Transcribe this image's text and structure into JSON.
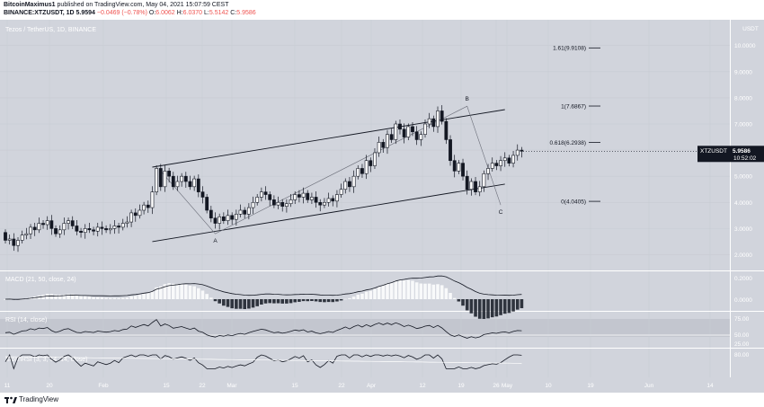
{
  "header": {
    "author": "BitcoinMaximus1",
    "published": "published on TradingView.com, May 04, 2021 15:07:59 CEST",
    "symbol": "BINANCE:XTZUSDT, 1D",
    "last": "5.9594",
    "change": "−0.0469 (−0.78%)",
    "o_label": "O:",
    "o": "6.0062",
    "h_label": "H:",
    "h": "6.0370",
    "l_label": "L:",
    "l": "5.5142",
    "c_label": "C:",
    "c": "5.9586"
  },
  "main": {
    "title": "Tezos / TetherUS, 1D, BINANCE",
    "currency": "USDT",
    "price_tag": {
      "symbol": "XTZUSDT",
      "price": "5.9586",
      "countdown": "10:52:02"
    },
    "fib_levels": [
      {
        "label": "1.61(9.9108)",
        "value": 9.9108
      },
      {
        "label": "1(7.6867)",
        "value": 7.6867
      },
      {
        "label": "0.618(6.2938)",
        "value": 6.2938
      },
      {
        "label": "0(4.0405)",
        "value": 4.0405
      }
    ],
    "wave_labels": {
      "a": "A",
      "b": "B",
      "c": "C"
    }
  },
  "macd": {
    "label": "MACD (21, 50, close, 24)",
    "ticks": [
      "0.0000",
      "0.2000"
    ]
  },
  "rsi": {
    "label": "RSI (14, close)",
    "ticks": [
      "75.00",
      "50.00",
      "25.00"
    ]
  },
  "stoch": {
    "label": "StochRSI (3, 3, 14, 14, close)",
    "ticks": [
      "80.00"
    ]
  },
  "footer": {
    "brand": "TradingView"
  },
  "chart_data": {
    "type": "candlestick",
    "title": "Tezos / TetherUS, 1D, BINANCE",
    "ylim": [
      1.5,
      10.3
    ],
    "y_ticks": [
      "10.0000",
      "9.0000",
      "8.0000",
      "7.0000",
      "6.0000",
      "5.0000",
      "4.0000",
      "3.0000",
      "2.0000"
    ],
    "x_ticks": [
      "11",
      "20",
      "Feb",
      "15",
      "22",
      "Mar",
      "15",
      "22",
      "Apr",
      "12",
      "19",
      "26",
      "May",
      "10",
      "19",
      "Jun",
      "14"
    ],
    "note_points": [
      {
        "label": "A",
        "day": 50,
        "price": 2.8
      },
      {
        "label": "B",
        "day": 110,
        "price": 7.68
      },
      {
        "label": "C",
        "day": 118,
        "price": 3.9
      }
    ],
    "candles": [
      [
        2.85,
        2.55
      ],
      [
        2.55,
        2.6
      ],
      [
        2.6,
        2.35
      ],
      [
        2.35,
        2.55
      ],
      [
        2.55,
        2.75
      ],
      [
        2.75,
        2.8
      ],
      [
        2.8,
        3.05
      ],
      [
        3.05,
        2.95
      ],
      [
        2.95,
        3.2
      ],
      [
        3.2,
        3.15
      ],
      [
        3.15,
        3.3
      ],
      [
        3.3,
        3.0
      ],
      [
        3.0,
        2.8
      ],
      [
        2.8,
        2.95
      ],
      [
        2.95,
        3.2
      ],
      [
        3.2,
        3.3
      ],
      [
        3.3,
        3.1
      ],
      [
        3.1,
        2.9
      ],
      [
        2.9,
        2.85
      ],
      [
        2.85,
        3.0
      ],
      [
        3.0,
        2.95
      ],
      [
        2.95,
        2.9
      ],
      [
        2.9,
        3.05
      ],
      [
        3.05,
        3.0
      ],
      [
        3.0,
        2.95
      ],
      [
        2.95,
        3.0
      ],
      [
        3.0,
        3.1
      ],
      [
        3.1,
        3.05
      ],
      [
        3.05,
        3.2
      ],
      [
        3.2,
        3.25
      ],
      [
        3.25,
        3.6
      ],
      [
        3.6,
        3.5
      ],
      [
        3.5,
        3.7
      ],
      [
        3.7,
        3.9
      ],
      [
        3.9,
        3.8
      ],
      [
        3.8,
        4.4
      ],
      [
        4.4,
        5.3
      ],
      [
        5.3,
        4.6
      ],
      [
        4.6,
        5.2
      ],
      [
        5.2,
        5.0
      ],
      [
        5.0,
        4.6
      ],
      [
        4.6,
        4.8
      ],
      [
        4.8,
        5.0
      ],
      [
        5.0,
        4.8
      ],
      [
        4.8,
        4.6
      ],
      [
        4.6,
        4.9
      ],
      [
        4.9,
        4.4
      ],
      [
        4.4,
        4.2
      ],
      [
        4.2,
        3.7
      ],
      [
        3.7,
        3.4
      ],
      [
        3.4,
        3.2
      ],
      [
        3.2,
        3.45
      ],
      [
        3.45,
        3.3
      ],
      [
        3.3,
        3.5
      ],
      [
        3.5,
        3.35
      ],
      [
        3.35,
        3.55
      ],
      [
        3.55,
        3.7
      ],
      [
        3.7,
        3.55
      ],
      [
        3.55,
        3.8
      ],
      [
        3.8,
        4.0
      ],
      [
        4.0,
        4.2
      ],
      [
        4.2,
        4.4
      ],
      [
        4.4,
        4.3
      ],
      [
        4.3,
        4.1
      ],
      [
        4.1,
        3.9
      ],
      [
        3.9,
        4.0
      ],
      [
        4.0,
        3.85
      ],
      [
        3.85,
        3.95
      ],
      [
        3.95,
        4.1
      ],
      [
        4.1,
        4.3
      ],
      [
        4.3,
        4.2
      ],
      [
        4.2,
        4.35
      ],
      [
        4.35,
        4.1
      ],
      [
        4.1,
        4.2
      ],
      [
        4.2,
        4.0
      ],
      [
        4.0,
        3.9
      ],
      [
        3.9,
        4.0
      ],
      [
        4.0,
        4.15
      ],
      [
        4.15,
        4.05
      ],
      [
        4.05,
        4.3
      ],
      [
        4.3,
        4.5
      ],
      [
        4.5,
        4.8
      ],
      [
        4.8,
        4.6
      ],
      [
        4.6,
        5.0
      ],
      [
        5.0,
        5.3
      ],
      [
        5.3,
        5.1
      ],
      [
        5.1,
        5.6
      ],
      [
        5.6,
        5.4
      ],
      [
        5.4,
        5.9
      ],
      [
        5.9,
        6.3
      ],
      [
        6.3,
        6.1
      ],
      [
        6.1,
        6.6
      ],
      [
        6.6,
        6.4
      ],
      [
        6.4,
        7.0
      ],
      [
        7.0,
        6.8
      ],
      [
        6.8,
        6.5
      ],
      [
        6.5,
        6.9
      ],
      [
        6.9,
        6.7
      ],
      [
        6.7,
        6.4
      ],
      [
        6.4,
        6.6
      ],
      [
        6.6,
        7.0
      ],
      [
        7.0,
        7.2
      ],
      [
        7.2,
        6.9
      ],
      [
        6.9,
        7.5
      ],
      [
        7.5,
        7.1
      ],
      [
        7.1,
        6.4
      ],
      [
        6.4,
        5.6
      ],
      [
        5.6,
        5.2
      ],
      [
        5.2,
        5.5
      ],
      [
        5.5,
        5.0
      ],
      [
        5.0,
        4.5
      ],
      [
        4.5,
        4.8
      ],
      [
        4.8,
        4.4
      ],
      [
        4.4,
        4.6
      ],
      [
        4.6,
        5.1
      ],
      [
        5.1,
        5.3
      ],
      [
        5.3,
        5.5
      ],
      [
        5.5,
        5.4
      ],
      [
        5.4,
        5.6
      ],
      [
        5.6,
        5.7
      ],
      [
        5.7,
        5.5
      ],
      [
        5.5,
        5.8
      ],
      [
        5.8,
        6.0
      ],
      [
        6.0,
        5.96
      ]
    ]
  }
}
